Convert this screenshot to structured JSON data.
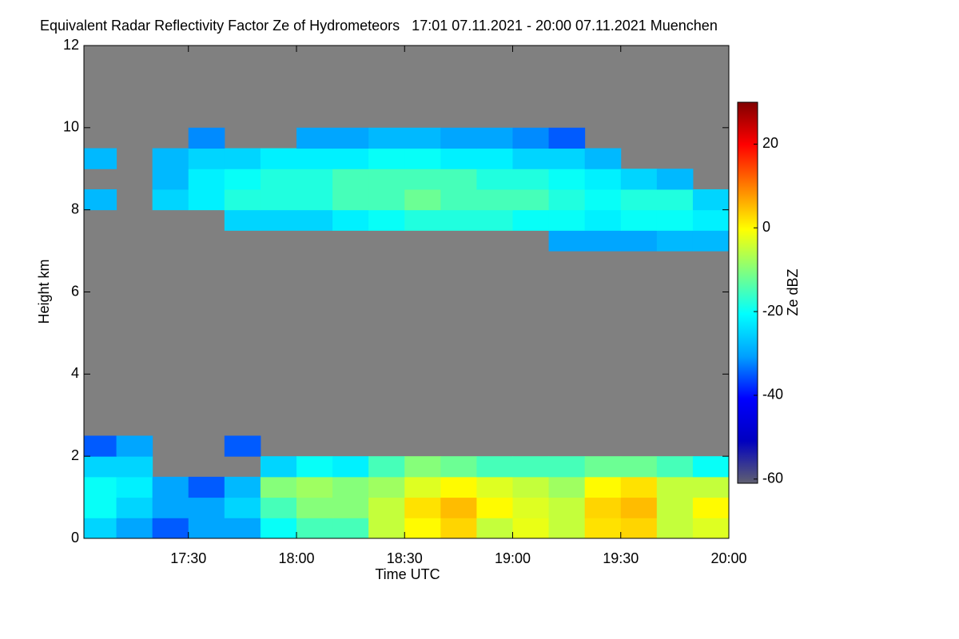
{
  "chart_data": {
    "type": "heatmap",
    "title": "Equivalent Radar Reflectivity Factor Ze of Hydrometeors   17:01 07.11.2021 - 20:00 07.11.2021 Muenchen",
    "xlabel": "Time UTC",
    "ylabel": "Height km",
    "colorbar_label": "Ze dBZ",
    "xlim": [
      "17:01",
      "20:00"
    ],
    "xticks": [
      "17:30",
      "18:00",
      "18:30",
      "19:00",
      "19:30",
      "20:00"
    ],
    "ylim": [
      0,
      12
    ],
    "yticks": [
      0,
      2,
      4,
      6,
      8,
      10,
      12
    ],
    "clim": [
      -61,
      30
    ],
    "cticks": [
      -60,
      -40,
      -20,
      0,
      20
    ],
    "background": "#808080",
    "colormap": [
      "#606070",
      "#0000c0",
      "#0000ff",
      "#00a0ff",
      "#00ffff",
      "#80ff80",
      "#ffff00",
      "#ff8000",
      "#ff0000",
      "#800000"
    ],
    "x": [
      "17:05",
      "17:15",
      "17:25",
      "17:35",
      "17:45",
      "17:55",
      "18:05",
      "18:15",
      "18:25",
      "18:35",
      "18:45",
      "18:55",
      "19:05",
      "19:15",
      "19:25",
      "19:35",
      "19:45",
      "19:55"
    ],
    "y": [
      0.25,
      0.75,
      1.25,
      1.75,
      2.25,
      2.75,
      3.25,
      3.75,
      4.25,
      4.75,
      5.25,
      5.75,
      6.25,
      6.75,
      7.25,
      7.75,
      8.25,
      8.75,
      9.25,
      9.75,
      10.25,
      10.75,
      11.25,
      11.75
    ],
    "z": [
      [
        -25,
        -30,
        -35,
        -30,
        -30,
        -20,
        -15,
        -15,
        -5,
        0,
        3,
        -5,
        -2,
        -5,
        2,
        3,
        -5,
        -3
      ],
      [
        -20,
        -25,
        -30,
        -30,
        -25,
        -15,
        -10,
        -10,
        -5,
        2,
        5,
        0,
        -3,
        -5,
        3,
        5,
        -5,
        0
      ],
      [
        -20,
        -22,
        -30,
        -35,
        -28,
        -10,
        -8,
        -10,
        -8,
        -3,
        0,
        -3,
        -5,
        -8,
        0,
        2,
        -5,
        -5
      ],
      [
        -25,
        -25,
        null,
        null,
        null,
        -25,
        -20,
        -22,
        -15,
        -10,
        -12,
        -15,
        -15,
        -15,
        -12,
        -12,
        -15,
        -20
      ],
      [
        -35,
        -30,
        null,
        null,
        -35,
        null,
        null,
        null,
        null,
        null,
        null,
        null,
        null,
        null,
        null,
        null,
        null,
        null
      ],
      [
        null,
        null,
        null,
        null,
        null,
        null,
        null,
        null,
        null,
        null,
        null,
        null,
        null,
        null,
        null,
        null,
        null,
        null
      ],
      [
        null,
        null,
        null,
        null,
        null,
        null,
        null,
        null,
        null,
        null,
        null,
        null,
        null,
        null,
        null,
        null,
        null,
        null
      ],
      [
        null,
        null,
        null,
        null,
        null,
        null,
        null,
        null,
        null,
        null,
        null,
        null,
        null,
        null,
        null,
        null,
        null,
        null
      ],
      [
        null,
        null,
        null,
        null,
        null,
        null,
        null,
        null,
        null,
        null,
        null,
        null,
        null,
        null,
        null,
        null,
        null,
        null
      ],
      [
        null,
        null,
        null,
        null,
        null,
        null,
        null,
        null,
        null,
        null,
        null,
        null,
        null,
        null,
        null,
        null,
        null,
        null
      ],
      [
        null,
        null,
        null,
        null,
        null,
        null,
        null,
        null,
        null,
        null,
        null,
        null,
        null,
        null,
        null,
        null,
        null,
        null
      ],
      [
        null,
        null,
        null,
        null,
        null,
        null,
        null,
        null,
        null,
        null,
        null,
        null,
        null,
        null,
        null,
        null,
        null,
        null
      ],
      [
        null,
        null,
        null,
        null,
        null,
        null,
        null,
        null,
        null,
        null,
        null,
        null,
        null,
        null,
        null,
        null,
        null,
        null
      ],
      [
        null,
        null,
        null,
        null,
        null,
        null,
        null,
        null,
        null,
        null,
        null,
        null,
        null,
        null,
        null,
        null,
        null,
        null
      ],
      [
        null,
        null,
        null,
        null,
        null,
        null,
        null,
        null,
        null,
        null,
        null,
        null,
        null,
        -30,
        -30,
        -30,
        -28,
        -28
      ],
      [
        null,
        null,
        null,
        null,
        -25,
        -25,
        -25,
        -22,
        -20,
        -18,
        -18,
        -18,
        -20,
        -20,
        -22,
        -20,
        -20,
        -22
      ],
      [
        -28,
        null,
        -25,
        -22,
        -18,
        -18,
        -18,
        -15,
        -15,
        -12,
        -15,
        -15,
        -15,
        -18,
        -20,
        -18,
        -18,
        -25
      ],
      [
        null,
        null,
        -28,
        -22,
        -20,
        -18,
        -18,
        -15,
        -15,
        -15,
        -15,
        -18,
        -18,
        -20,
        -22,
        -25,
        -28,
        null
      ],
      [
        -28,
        null,
        -28,
        -25,
        -25,
        -22,
        -22,
        -22,
        -20,
        -20,
        -22,
        -22,
        -25,
        -25,
        -28,
        null,
        null,
        null
      ],
      [
        null,
        null,
        null,
        -32,
        null,
        null,
        -30,
        -30,
        -28,
        -28,
        -30,
        -30,
        -32,
        -35,
        null,
        null,
        null,
        null
      ],
      [
        null,
        null,
        null,
        null,
        null,
        null,
        null,
        null,
        null,
        null,
        null,
        null,
        null,
        null,
        null,
        null,
        null,
        null
      ],
      [
        null,
        null,
        null,
        null,
        null,
        null,
        null,
        null,
        null,
        null,
        null,
        null,
        null,
        null,
        null,
        null,
        null,
        null
      ],
      [
        null,
        null,
        null,
        null,
        null,
        null,
        null,
        null,
        null,
        null,
        null,
        null,
        null,
        null,
        null,
        null,
        null,
        null
      ],
      [
        null,
        null,
        null,
        null,
        null,
        null,
        null,
        null,
        null,
        null,
        null,
        null,
        null,
        null,
        null,
        null,
        null,
        null
      ]
    ]
  }
}
